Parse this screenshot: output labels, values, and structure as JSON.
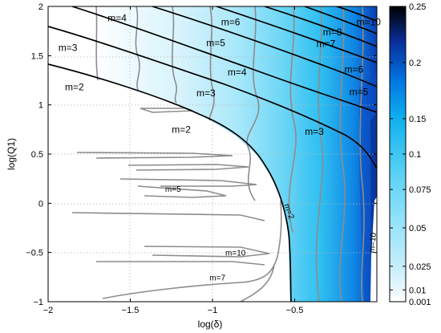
{
  "chart_data": {
    "type": "contour",
    "title": "",
    "xlabel": "log(δ)",
    "ylabel": "log(Q1)",
    "xlim": [
      -2,
      0
    ],
    "ylim": [
      -1,
      2
    ],
    "x_ticks": [
      -2,
      -1.5,
      -1,
      -0.5
    ],
    "x_tick_labels": [
      "−2",
      "−1.5",
      "−1",
      "−0.5"
    ],
    "y_ticks": [
      -1,
      -0.5,
      0,
      0.5,
      1,
      1.5,
      2
    ],
    "y_tick_labels": [
      "−1",
      "−0.5",
      "0",
      "0.5",
      "1",
      "1.5",
      "2"
    ],
    "grid": true,
    "colorbar": {
      "ticks": [
        0.001,
        0.01,
        0.025,
        0.05,
        0.075,
        0.1,
        0.15,
        0.2,
        0.25
      ],
      "tick_labels": [
        "0.001",
        "0.01",
        "0.025",
        "0.05",
        "0.075",
        "0.1",
        "0.15",
        "0.2",
        "0.25"
      ],
      "colors": [
        "#ffffff",
        "#e9f7fd",
        "#c5eefb",
        "#9be4fa",
        "#6fd8f7",
        "#3fc7f2",
        "#10b0ee",
        "#0075e2",
        "#0a2f9a",
        "#000000"
      ]
    },
    "black_contour_labels": [
      {
        "text": "m=2",
        "x": -1.84,
        "y": 1.18
      },
      {
        "text": "m=2",
        "x": -1.19,
        "y": 0.75
      },
      {
        "text": "m=3",
        "x": -1.88,
        "y": 1.58
      },
      {
        "text": "m=3",
        "x": -1.04,
        "y": 1.12
      },
      {
        "text": "m=3",
        "x": -0.38,
        "y": 0.73
      },
      {
        "text": "m=4",
        "x": -1.58,
        "y": 1.88
      },
      {
        "text": "m=4",
        "x": -0.85,
        "y": 1.33
      },
      {
        "text": "m=5",
        "x": -0.98,
        "y": 1.63
      },
      {
        "text": "m=5",
        "x": -0.11,
        "y": 1.13
      },
      {
        "text": "m=6",
        "x": -0.89,
        "y": 1.84
      },
      {
        "text": "m=6",
        "x": -0.14,
        "y": 1.36
      },
      {
        "text": "m=7",
        "x": -0.31,
        "y": 1.62
      },
      {
        "text": "m=8",
        "x": -0.27,
        "y": 1.74
      },
      {
        "text": "m=10",
        "x": -0.05,
        "y": 1.84
      }
    ],
    "gray_contour_labels": [
      {
        "text": "m=5",
        "x": -1.24,
        "y": 0.15
      },
      {
        "text": "m=10",
        "x": -0.86,
        "y": -0.5
      },
      {
        "text": "m=7",
        "x": -0.97,
        "y": -0.75
      },
      {
        "text": "m=2",
        "x": -0.53,
        "y": -0.08
      },
      {
        "text": "m=10",
        "x": -0.03,
        "y": -0.4
      }
    ]
  }
}
